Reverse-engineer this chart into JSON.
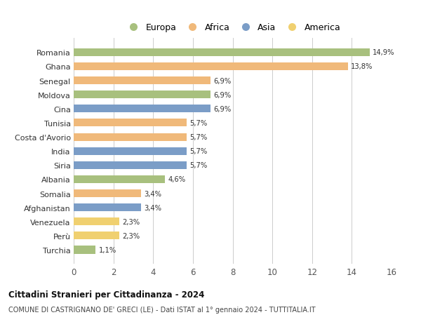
{
  "countries": [
    "Romania",
    "Ghana",
    "Senegal",
    "Moldova",
    "Cina",
    "Tunisia",
    "Costa d'Avorio",
    "India",
    "Siria",
    "Albania",
    "Somalia",
    "Afghanistan",
    "Venezuela",
    "Perù",
    "Turchia"
  ],
  "values": [
    14.9,
    13.8,
    6.9,
    6.9,
    6.9,
    5.7,
    5.7,
    5.7,
    5.7,
    4.6,
    3.4,
    3.4,
    2.3,
    2.3,
    1.1
  ],
  "continents": [
    "Europa",
    "Africa",
    "Africa",
    "Europa",
    "Asia",
    "Africa",
    "Africa",
    "Asia",
    "Asia",
    "Europa",
    "Africa",
    "Asia",
    "America",
    "America",
    "Europa"
  ],
  "continent_colors": {
    "Europa": "#a8c07e",
    "Africa": "#f0b97a",
    "Asia": "#7b9dc7",
    "America": "#f0d070"
  },
  "legend_order": [
    "Europa",
    "Africa",
    "Asia",
    "America"
  ],
  "title1": "Cittadini Stranieri per Cittadinanza - 2024",
  "title2": "COMUNE DI CASTRIGNANO DE' GRECI (LE) - Dati ISTAT al 1° gennaio 2024 - TUTTITALIA.IT",
  "xlim": [
    0,
    16
  ],
  "xticks": [
    0,
    2,
    4,
    6,
    8,
    10,
    12,
    14,
    16
  ],
  "background_color": "#ffffff",
  "grid_color": "#cccccc",
  "bar_height": 0.55
}
